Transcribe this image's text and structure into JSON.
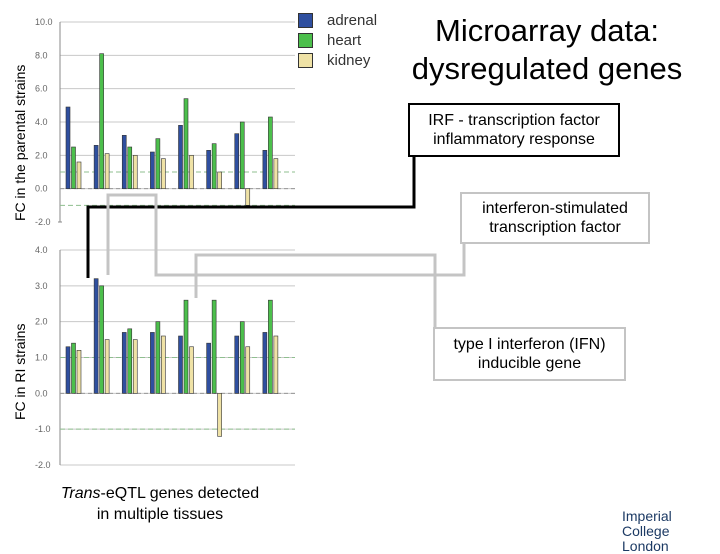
{
  "title_lines": [
    "Microarray data:",
    "dysregulated genes"
  ],
  "colors": {
    "adrenal": "#2f4f9f",
    "heart": "#4cbf4c",
    "kidney": "#efe2a6",
    "connector_dark": "#000000",
    "connector_grey": "#c4c4c4"
  },
  "legend": [
    {
      "name": "adrenal",
      "color": "#2f4f9f"
    },
    {
      "name": "heart",
      "color": "#4cbf4c"
    },
    {
      "name": "kidney",
      "color": "#efe2a6"
    }
  ],
  "annotations": {
    "irf": [
      "IRF - transcription factor",
      "inflammatory response"
    ],
    "isg": [
      "interferon-stimulated",
      "transcription factor"
    ],
    "ifn": [
      "type I interferon (IFN)",
      "inducible gene"
    ]
  },
  "caption": {
    "emph": "Trans",
    "rest": "-eQTL genes detected",
    "line2": "in multiple tissues"
  },
  "logo": {
    "line1": "Imperial College",
    "line2": "London"
  },
  "chart_data": [
    {
      "type": "bar",
      "ylabel": "FC in the parental strains",
      "ylim": [
        -2,
        10
      ],
      "ticks": [
        "10.0",
        "8.0",
        "6.0",
        "4.0",
        "2.0",
        "0.0",
        "-2.0"
      ],
      "tick_values": [
        10,
        8,
        6,
        4,
        2,
        0,
        -2
      ],
      "series": [
        {
          "name": "adrenal",
          "values": [
            4.9,
            2.6,
            3.2,
            2.2,
            3.8,
            2.3,
            3.3,
            2.3
          ]
        },
        {
          "name": "heart",
          "values": [
            2.5,
            8.1,
            2.5,
            3.0,
            5.4,
            2.7,
            4.0,
            4.3
          ]
        },
        {
          "name": "kidney",
          "values": [
            1.6,
            2.1,
            2.0,
            1.8,
            2.0,
            1.0,
            -1.0,
            1.8
          ]
        }
      ]
    },
    {
      "type": "bar",
      "ylabel": "FC in RI strains",
      "ylim": [
        -2,
        4
      ],
      "ticks": [
        "4.0",
        "3.0",
        "2.0",
        "1.0",
        "0.0",
        "-1.0",
        "-2.0"
      ],
      "tick_values": [
        4,
        3,
        2,
        1,
        0,
        -1,
        -2
      ],
      "series": [
        {
          "name": "adrenal",
          "values": [
            1.3,
            3.2,
            1.7,
            1.7,
            1.6,
            1.4,
            1.6,
            1.7
          ]
        },
        {
          "name": "heart",
          "values": [
            1.4,
            3.0,
            1.8,
            2.0,
            2.6,
            2.6,
            2.0,
            2.6
          ]
        },
        {
          "name": "kidney",
          "values": [
            1.2,
            1.5,
            1.5,
            1.6,
            1.3,
            -1.2,
            1.3,
            1.6
          ]
        }
      ]
    }
  ]
}
